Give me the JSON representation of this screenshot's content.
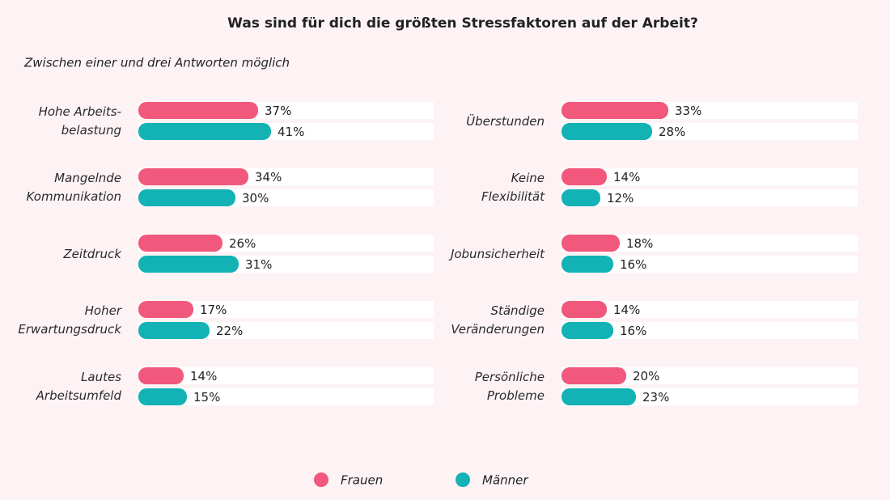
{
  "chart_data": [
    {
      "type": "hbar",
      "title": "Was sind für dich die größten Stressfaktoren auf der Arbeit?",
      "subtitle": "Zwischen einer und drei Antworten möglich",
      "categories": [
        "Hohe Arbeits-\nbelastung",
        "Mangelnde\nKommunikation",
        "Zeitdruck",
        "Hoher\nErwartungsdruck",
        "Lautes\nArbeitsumfeld"
      ],
      "series": [
        {
          "name": "Frauen",
          "color": "#f1587b",
          "values": [
            37,
            34,
            26,
            17,
            14
          ],
          "value_labels": [
            "37%",
            "34%",
            "26%",
            "17%",
            "14%"
          ]
        },
        {
          "name": "Männer",
          "color": "#13b2b4",
          "values": [
            41,
            30,
            31,
            22,
            15
          ],
          "value_labels": [
            "41%",
            "30%",
            "31%",
            "22%",
            "15%"
          ]
        }
      ]
    },
    {
      "type": "hbar",
      "categories": [
        "Überstunden",
        "Keine\nFlexibilität",
        "Jobunsicherheit",
        "Ständige\nVeränderungen",
        "Persönliche\nProbleme"
      ],
      "series": [
        {
          "name": "Frauen",
          "color": "#f1587b",
          "values": [
            33,
            14,
            18,
            14,
            20
          ],
          "value_labels": [
            "33%",
            "14%",
            "18%",
            "14%",
            "20%"
          ]
        },
        {
          "name": "Männer",
          "color": "#13b2b4",
          "values": [
            28,
            12,
            16,
            16,
            23
          ],
          "value_labels": [
            "28%",
            "12%",
            "16%",
            "16%",
            "23%"
          ]
        }
      ]
    }
  ]
}
